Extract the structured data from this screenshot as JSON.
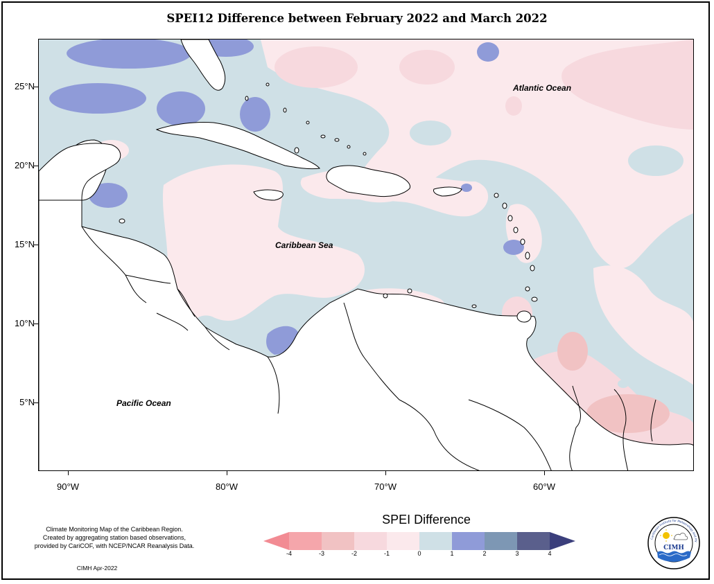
{
  "title": "SPEI12 Difference between February 2022 and March 2022",
  "map": {
    "lat_labels": [
      "25°N",
      "20°N",
      "15°N",
      "10°N",
      "5°N"
    ],
    "lon_labels": [
      "90°W",
      "80°W",
      "70°W",
      "60°W"
    ],
    "ocean_labels": {
      "atlantic": "Atlantic Ocean",
      "caribbean": "Caribbean Sea",
      "pacific": "Pacific Ocean"
    }
  },
  "legend": {
    "title": "SPEI Difference",
    "ticks": [
      "-4",
      "-3",
      "-2",
      "-1",
      "0",
      "1",
      "2",
      "3",
      "4"
    ],
    "colors": [
      "#f28b93",
      "#f5a6ab",
      "#f1c2c3",
      "#f7d9de",
      "#fbe9ec",
      "#cfe0e6",
      "#8f9bd8",
      "#7d97b4",
      "#5a5f8c",
      "#3b3f7c"
    ]
  },
  "footnote": [
    "Climate Monitoring Map of the Caribbean Region.",
    "Created by aggregating station based observations,",
    "provided by CariCOF, with NCEP/NCAR Reanalysis Data."
  ],
  "credit": "CIMH Apr-2022",
  "logo": {
    "text": "CIMH",
    "ring_text": "Caribbean Institute for Meteorology and Hydrology"
  }
}
